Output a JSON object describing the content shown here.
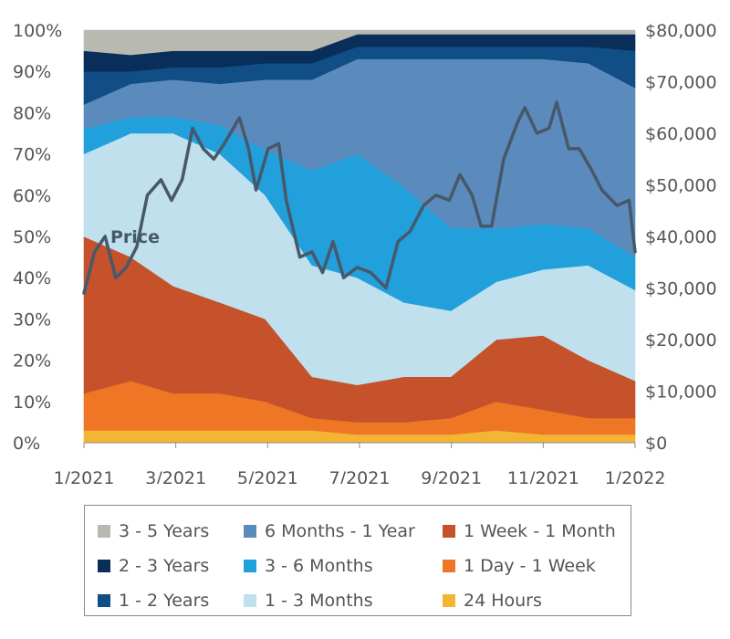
{
  "chart_data": {
    "type": "area",
    "stacking": "percent",
    "x_ticks": [
      "1/2021",
      "3/2021",
      "5/2021",
      "7/2021",
      "9/2021",
      "11/2021",
      "1/2022"
    ],
    "x": [
      "2021-01",
      "2021-02",
      "2021-03",
      "2021-04",
      "2021-05",
      "2021-06",
      "2021-07",
      "2021-08",
      "2021-09",
      "2021-10",
      "2021-11",
      "2021-12",
      "2022-01"
    ],
    "y_left_ticks": [
      "0%",
      "10%",
      "20%",
      "30%",
      "40%",
      "50%",
      "60%",
      "70%",
      "80%",
      "90%",
      "100%"
    ],
    "y_right_ticks": [
      "$0",
      "$10,000",
      "$20,000",
      "$30,000",
      "$40,000",
      "$50,000",
      "$60,000",
      "$70,000",
      "$80,000"
    ],
    "ylim_left": [
      0,
      100
    ],
    "ylim_right": [
      0,
      80000
    ],
    "series": [
      {
        "name": "24 Hours",
        "color": "#f4b434",
        "values": [
          3,
          3,
          3,
          3,
          3,
          3,
          2,
          2,
          2,
          3,
          2,
          2,
          2
        ]
      },
      {
        "name": "1 Day - 1 Week",
        "color": "#ee7624",
        "values": [
          9,
          12,
          9,
          9,
          7,
          3,
          3,
          3,
          4,
          7,
          6,
          4,
          4
        ]
      },
      {
        "name": "1 Week - 1 Month",
        "color": "#c5522a",
        "values": [
          38,
          30,
          26,
          22,
          20,
          10,
          9,
          11,
          10,
          15,
          18,
          14,
          9
        ]
      },
      {
        "name": "1 - 3 Months",
        "color": "#bfe0ec",
        "values": [
          20,
          30,
          37,
          36,
          30,
          27,
          26,
          18,
          16,
          14,
          16,
          23,
          22
        ]
      },
      {
        "name": "3 - 6 Months",
        "color": "#21a0dc",
        "values": [
          6,
          4,
          4,
          7,
          11,
          23,
          30,
          28,
          20,
          13,
          11,
          9,
          8
        ]
      },
      {
        "name": "6 Months - 1 Year",
        "color": "#5b8bbd",
        "values": [
          6,
          8,
          9,
          10,
          17,
          22,
          23,
          31,
          41,
          41,
          40,
          40,
          41
        ]
      },
      {
        "name": "1 - 2 Years",
        "color": "#114e86",
        "values": [
          8,
          3,
          3,
          4,
          4,
          4,
          3,
          3,
          3,
          3,
          3,
          4,
          9
        ]
      },
      {
        "name": "2 - 3 Years",
        "color": "#082e59",
        "values": [
          5,
          4,
          4,
          4,
          3,
          3,
          3,
          3,
          3,
          3,
          3,
          3,
          4
        ]
      },
      {
        "name": "3 - 5 Years",
        "color": "#b8b9b1",
        "values": [
          5,
          6,
          5,
          5,
          5,
          5,
          1,
          1,
          1,
          1,
          1,
          1,
          1
        ]
      }
    ],
    "price_series": {
      "name": "Price",
      "color": "#47586a",
      "axis": "right",
      "x": [
        "2021-01-01",
        "2021-01-08",
        "2021-01-15",
        "2021-01-22",
        "2021-01-29",
        "2021-02-05",
        "2021-02-12",
        "2021-02-21",
        "2021-02-28",
        "2021-03-07",
        "2021-03-14",
        "2021-03-21",
        "2021-03-28",
        "2021-04-04",
        "2021-04-14",
        "2021-04-20",
        "2021-04-25",
        "2021-05-03",
        "2021-05-10",
        "2021-05-15",
        "2021-05-19",
        "2021-05-24",
        "2021-06-01",
        "2021-06-08",
        "2021-06-15",
        "2021-06-22",
        "2021-07-01",
        "2021-07-10",
        "2021-07-20",
        "2021-07-28",
        "2021-08-05",
        "2021-08-14",
        "2021-08-22",
        "2021-08-31",
        "2021-09-07",
        "2021-09-15",
        "2021-09-21",
        "2021-09-28",
        "2021-10-06",
        "2021-10-15",
        "2021-10-20",
        "2021-10-28",
        "2021-11-05",
        "2021-11-10",
        "2021-11-18",
        "2021-11-25",
        "2021-12-03",
        "2021-12-10",
        "2021-12-20",
        "2021-12-28",
        "2022-01-01"
      ],
      "y": [
        29000,
        37000,
        40000,
        32000,
        34000,
        38000,
        48000,
        51000,
        47000,
        51000,
        61000,
        57000,
        55000,
        58000,
        63000,
        57000,
        49000,
        57000,
        58000,
        47000,
        42000,
        36000,
        37000,
        33000,
        39000,
        32000,
        34000,
        33000,
        30000,
        39000,
        41000,
        46000,
        48000,
        47000,
        52000,
        48000,
        42000,
        42000,
        55000,
        62000,
        65000,
        60000,
        61000,
        66000,
        57000,
        57000,
        53000,
        49000,
        46000,
        47000,
        37000
      ]
    },
    "annotations": [
      "Price"
    ]
  },
  "legend": {
    "items": [
      {
        "label": "3 - 5 Years",
        "color": "#b8b9b1"
      },
      {
        "label": "2 - 3 Years",
        "color": "#082e59"
      },
      {
        "label": "1 - 2 Years",
        "color": "#114e86"
      },
      {
        "label": "6 Months - 1 Year",
        "color": "#5b8bbd"
      },
      {
        "label": "3 - 6 Months",
        "color": "#21a0dc"
      },
      {
        "label": "1 - 3 Months",
        "color": "#bfe0ec"
      },
      {
        "label": "1 Week - 1 Month",
        "color": "#c5522a"
      },
      {
        "label": "1 Day - 1 Week",
        "color": "#ee7624"
      },
      {
        "label": "24 Hours",
        "color": "#f4b434"
      }
    ]
  }
}
